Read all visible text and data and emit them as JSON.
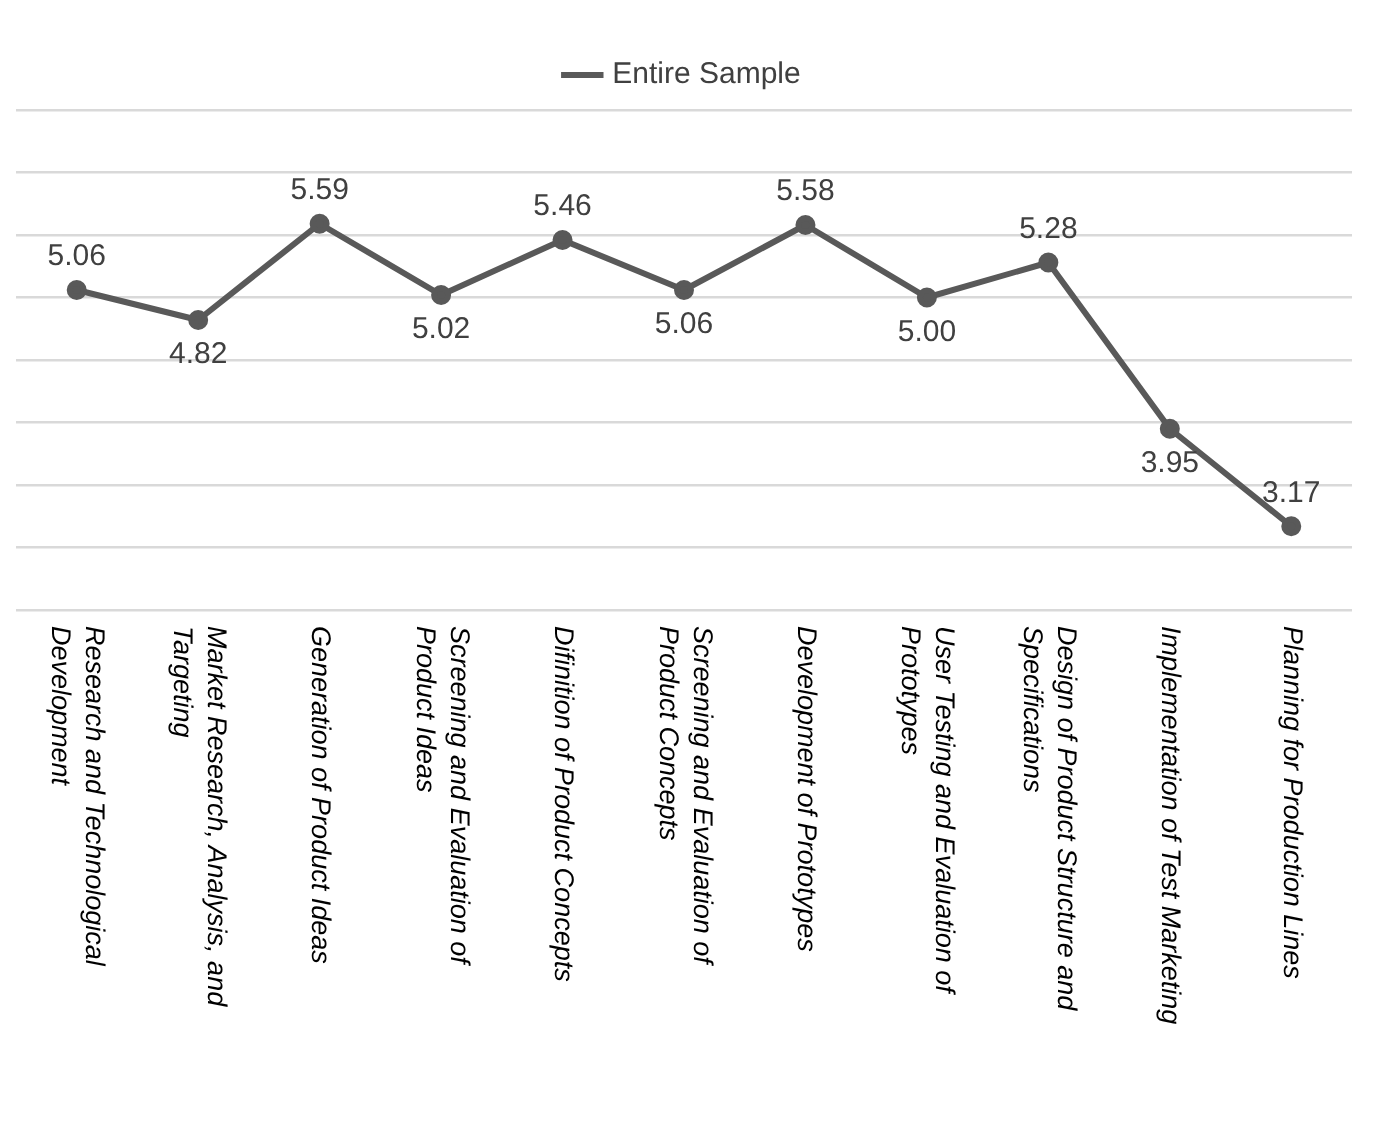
{
  "chart_data": {
    "type": "line",
    "categories": [
      "Research and Technological Development",
      "Market Research, Analysis, and Targeting",
      "Generation of Product Ideas",
      "Screening and Evaluation of Product Ideas",
      "Difinition of Product Concepts",
      "Screening and Evaluation of Product Concepts",
      "Development of Prototypes",
      "User Testing and Evaluation of Prototypes",
      "Design of Product Structure and Specifications",
      "Implementation of Test Marketing",
      "Planning for Production Lines"
    ],
    "series": [
      {
        "name": "Entire Sample",
        "color": "#595959",
        "values": [
          5.06,
          4.82,
          5.59,
          5.02,
          5.46,
          5.06,
          5.58,
          5.0,
          5.28,
          3.95,
          3.17
        ],
        "value_labels": [
          "5.06",
          "4.82",
          "5.59",
          "5.02",
          "5.46",
          "5.06",
          "5.58",
          "5.00",
          "5.28",
          "3.95",
          "3.17"
        ]
      }
    ],
    "ylim": [
      2.5,
      6.5
    ],
    "yticks": [
      {
        "value": 2.5,
        "label": null
      },
      {
        "value": 3,
        "label": null
      },
      {
        "value": 3.5,
        "label": null
      },
      {
        "value": 4,
        "label": null
      },
      {
        "value": 4.5,
        "label": null
      },
      {
        "value": 5,
        "label": null
      },
      {
        "value": 5.5,
        "label": null
      },
      {
        "value": 6,
        "label": null
      },
      {
        "value": 6.5,
        "label": null
      }
    ],
    "tick_labels": "x",
    "grid": "y",
    "legend": "top",
    "marker": "circle",
    "line_style": "solid"
  }
}
